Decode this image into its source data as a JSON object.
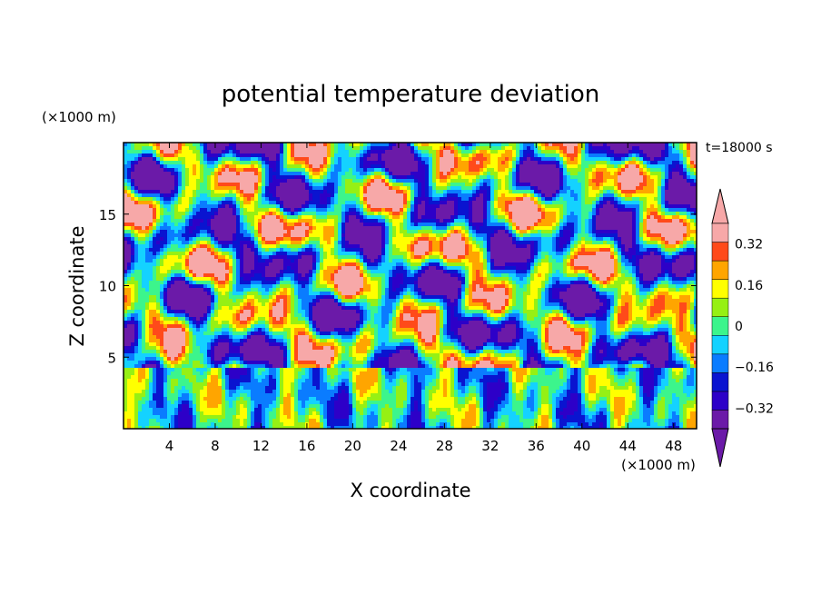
{
  "chart_data": {
    "type": "heatmap",
    "title": "potential temperature deviation",
    "xlabel": "X coordinate",
    "ylabel": "Z coordinate",
    "x_unit_label": "(×1000 m)",
    "y_unit_label": "(×1000 m)",
    "time_label": "t=18000 s",
    "xlim": [
      0,
      50
    ],
    "ylim": [
      0,
      20
    ],
    "x_ticks": [
      4,
      8,
      12,
      16,
      20,
      24,
      28,
      32,
      36,
      40,
      44,
      48
    ],
    "x_tick_labels": [
      "4",
      "8",
      "12",
      "16",
      "20",
      "24",
      "28",
      "32",
      "36",
      "40",
      "44",
      "48"
    ],
    "y_ticks": [
      5,
      10,
      15
    ],
    "y_tick_labels": [
      "5",
      "10",
      "15"
    ],
    "colorbar": {
      "levels": [
        -0.4,
        -0.32,
        -0.24,
        -0.16,
        -0.08,
        0,
        0.08,
        0.16,
        0.24,
        0.32,
        0.4
      ],
      "tick_values": [
        0.32,
        0.16,
        0,
        -0.16,
        -0.32
      ],
      "tick_labels": [
        "0.32",
        "0.16",
        "0",
        "−0.16",
        "−0.32"
      ],
      "colors_low_to_high": [
        "#6b1aa8",
        "#2d00c8",
        "#0a14d0",
        "#0a7cff",
        "#14d2ff",
        "#3cf58c",
        "#96f014",
        "#ffff00",
        "#ffa500",
        "#ff4a1a",
        "#f7a8a8"
      ],
      "over_color": "#f7a8a8",
      "under_color": "#6b1aa8"
    }
  }
}
